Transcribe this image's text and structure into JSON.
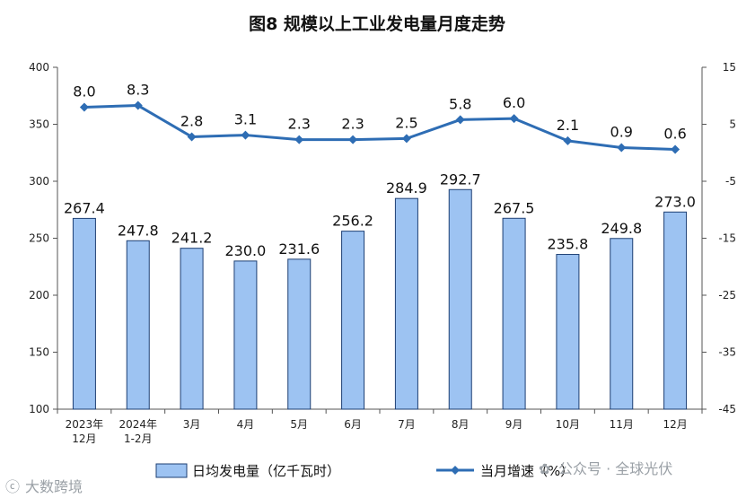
{
  "chart_data": {
    "type": "bar",
    "title": "图8  规模以上工业发电量月度走势",
    "categories": [
      [
        "2023年",
        "12月"
      ],
      [
        "2024年",
        "1-2月"
      ],
      [
        "3月"
      ],
      [
        "4月"
      ],
      [
        "5月"
      ],
      [
        "6月"
      ],
      [
        "7月"
      ],
      [
        "8月"
      ],
      [
        "9月"
      ],
      [
        "10月"
      ],
      [
        "11月"
      ],
      [
        "12月"
      ]
    ],
    "series": [
      {
        "name": "日均发电量（亿千瓦时）",
        "type": "bar",
        "axis": "left",
        "color": "#9dc3f2",
        "values": [
          267.4,
          247.8,
          241.2,
          230.0,
          231.6,
          256.2,
          284.9,
          292.7,
          267.5,
          235.8,
          249.8,
          273.0
        ],
        "labels": [
          "267.4",
          "247.8",
          "241.2",
          "230.0",
          "231.6",
          "256.2",
          "284.9",
          "292.7",
          "267.5",
          "235.8",
          "249.8",
          "273.0"
        ]
      },
      {
        "name": "当月增速（%）",
        "type": "line",
        "axis": "right",
        "color": "#2e6db4",
        "values": [
          8.0,
          8.3,
          2.8,
          3.1,
          2.3,
          2.3,
          2.5,
          5.8,
          6.0,
          2.1,
          0.9,
          0.6
        ],
        "labels": [
          "8.0",
          "8.3",
          "2.8",
          "3.1",
          "2.3",
          "2.3",
          "2.5",
          "5.8",
          "6.0",
          "2.1",
          "0.9",
          "0.6"
        ]
      }
    ],
    "y_left": {
      "min": 100,
      "max": 400,
      "step": 50,
      "ticks": [
        "400",
        "350",
        "300",
        "250",
        "200",
        "150",
        "100"
      ]
    },
    "y_right": {
      "min": -45,
      "max": 15,
      "step": 10,
      "ticks": [
        "15",
        "5",
        "-5",
        "-15",
        "-25",
        "-35",
        "-45"
      ]
    },
    "legend_position": "bottom",
    "grid": false
  },
  "watermarks": [
    "大数跨境",
    "公众号 · 全球光伏"
  ]
}
